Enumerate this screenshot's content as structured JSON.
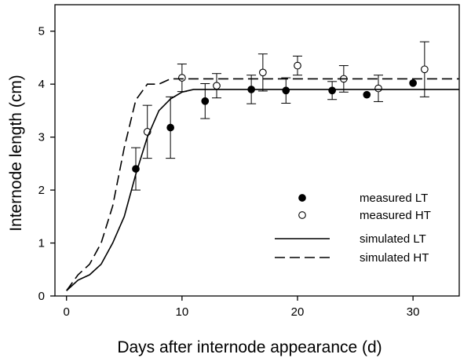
{
  "chart_data": {
    "type": "scatter",
    "xlabel": "Days after internode appearance (d)",
    "ylabel": "Internode length (cm)",
    "xlim": [
      -1,
      34
    ],
    "ylim": [
      0,
      5.5
    ],
    "xticks": [
      0,
      10,
      20,
      30
    ],
    "yticks": [
      0,
      1,
      2,
      3,
      4,
      5
    ],
    "grid": false,
    "legend_position": "bottom-right",
    "series": [
      {
        "name": "measured LT",
        "kind": "points",
        "marker": "filled-circle",
        "x": [
          6,
          9,
          12,
          16,
          19,
          23,
          26,
          30
        ],
        "y": [
          2.4,
          3.18,
          3.68,
          3.9,
          3.88,
          3.88,
          3.8,
          4.02
        ],
        "err": [
          0.4,
          0.58,
          0.33,
          0.27,
          0.24,
          0.17,
          0.0,
          0.0
        ]
      },
      {
        "name": "measured HT",
        "kind": "points",
        "marker": "open-circle",
        "x": [
          7,
          10,
          13,
          17,
          20,
          24,
          27,
          31
        ],
        "y": [
          3.1,
          4.12,
          3.97,
          4.22,
          4.35,
          4.1,
          3.92,
          4.28
        ],
        "err": [
          0.5,
          0.26,
          0.23,
          0.35,
          0.18,
          0.25,
          0.25,
          0.52
        ]
      },
      {
        "name": "simulated  LT",
        "kind": "line",
        "dash": "solid",
        "x": [
          0,
          1,
          2,
          3,
          4,
          5,
          6,
          7,
          8,
          9,
          10,
          11,
          12,
          34
        ],
        "y": [
          0.1,
          0.3,
          0.4,
          0.6,
          1.0,
          1.5,
          2.3,
          3.0,
          3.5,
          3.72,
          3.85,
          3.9,
          3.9,
          3.9
        ]
      },
      {
        "name": "simulated  HT",
        "kind": "line",
        "dash": "dashed",
        "x": [
          0,
          1,
          2,
          3,
          4,
          5,
          6,
          7,
          8,
          9,
          10,
          34
        ],
        "y": [
          0.1,
          0.4,
          0.6,
          1.0,
          1.7,
          2.8,
          3.7,
          4.0,
          4.0,
          4.1,
          4.1,
          4.1
        ]
      }
    ]
  }
}
